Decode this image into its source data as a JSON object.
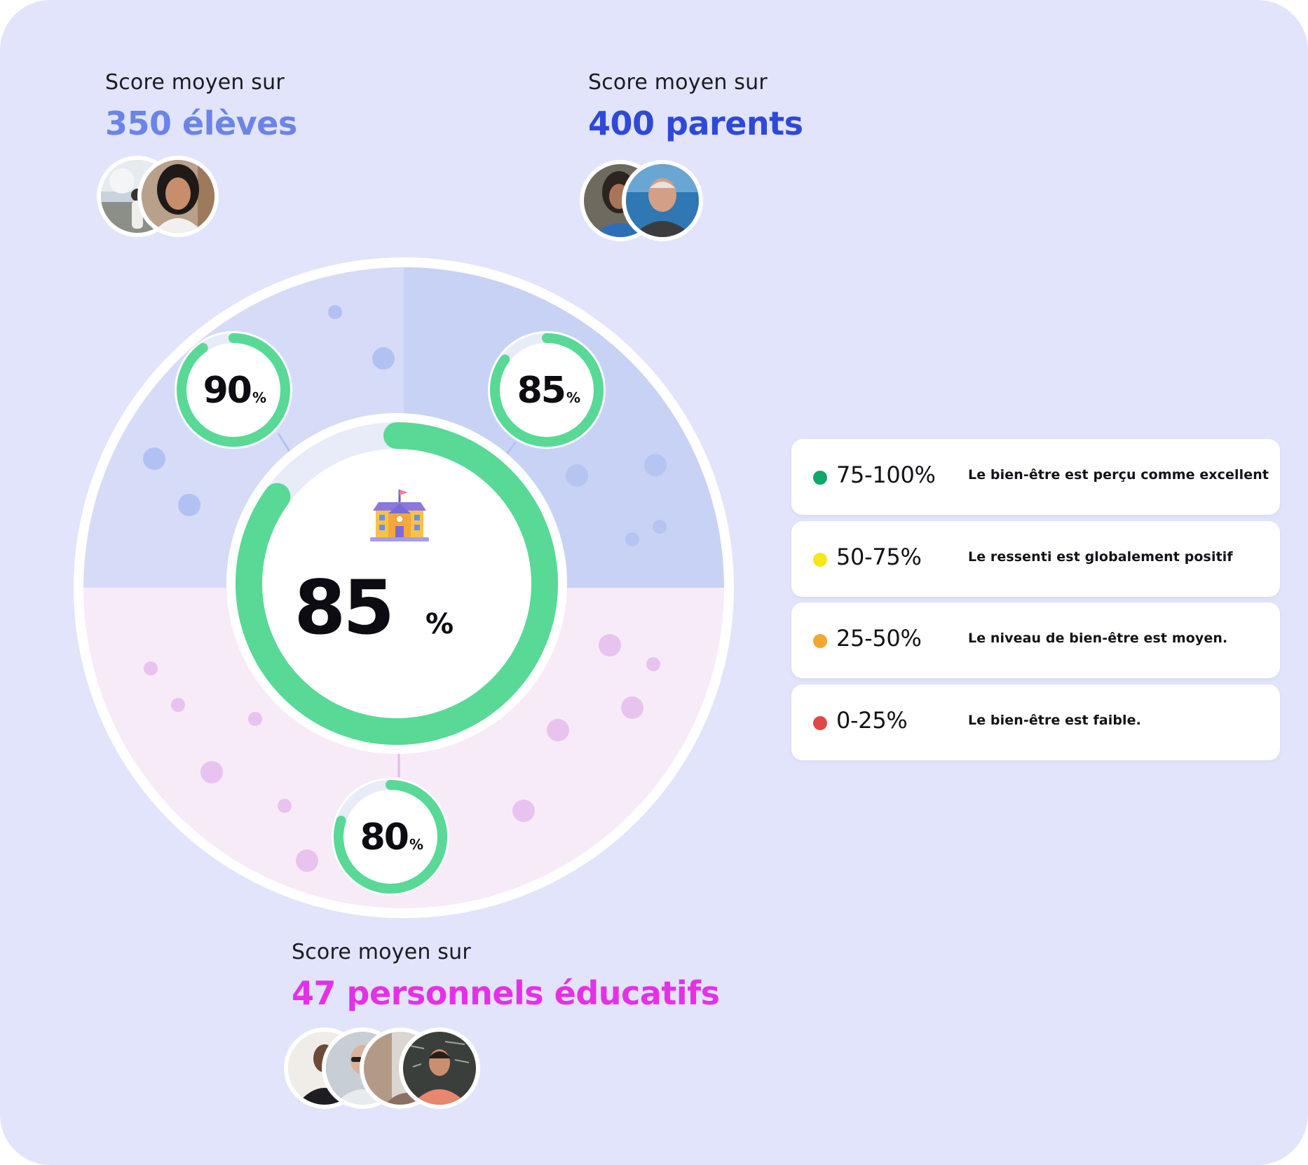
{
  "groups": {
    "students": {
      "caption": "Score moyen sur",
      "count": "350 élèves",
      "score_value": "90",
      "score_unit": "%",
      "score_fraction": 0.9,
      "color": "#6b84e6"
    },
    "parents": {
      "caption": "Score moyen sur",
      "count": "400 parents",
      "score_value": "85",
      "score_unit": "%",
      "score_fraction": 0.85,
      "color": "#2f49d6"
    },
    "staff": {
      "caption": "Score moyen sur",
      "count": "47 personnels éducatifs",
      "score_value": "80",
      "score_unit": "%",
      "score_fraction": 0.8,
      "color": "#e332e6"
    }
  },
  "overall": {
    "value": "85",
    "unit": "%",
    "fraction": 0.85,
    "icon": "school-building-icon"
  },
  "progress_color": "#58d996",
  "legend": [
    {
      "range": "75-100%",
      "description": "Le bien-être est perçu comme excellent",
      "color": "#11a66a"
    },
    {
      "range": "50-75%",
      "description": "Le ressenti est globalement positif",
      "color": "#f6e61a"
    },
    {
      "range": "25-50%",
      "description": "Le niveau de bien-être est moyen.",
      "color": "#f2a634"
    },
    {
      "range": "0-25%",
      "description": "Le bien-être est faible.",
      "color": "#e04848"
    }
  ]
}
